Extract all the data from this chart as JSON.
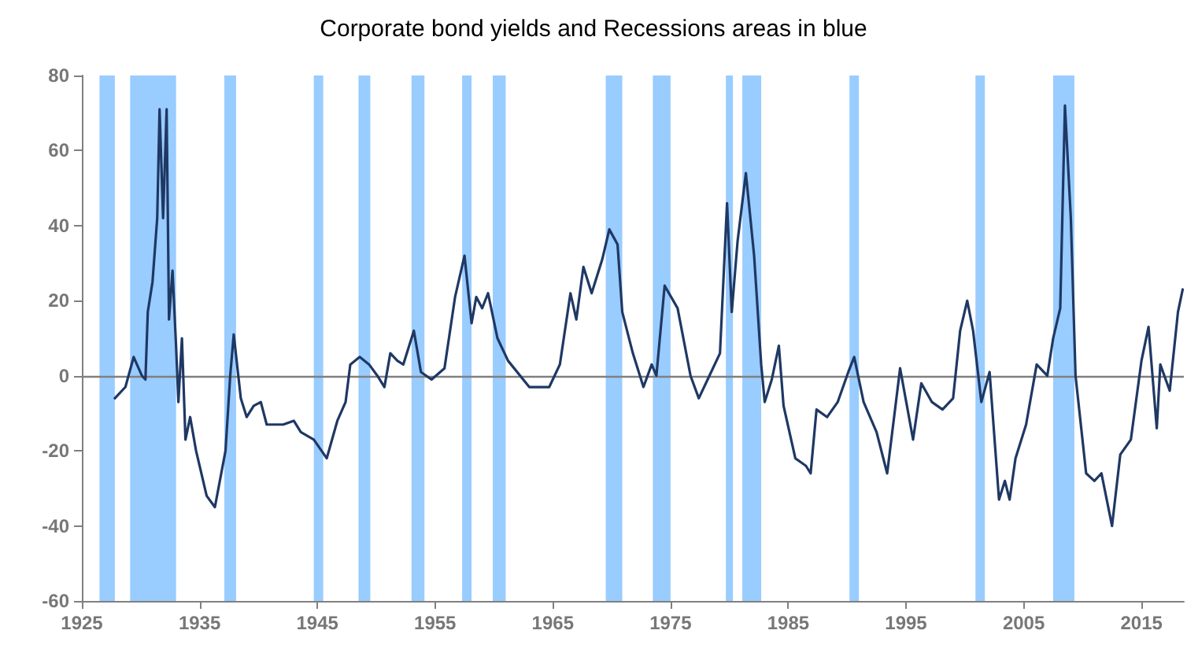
{
  "chart_data": {
    "type": "line",
    "title": "Corporate bond yields and Recessions areas in blue",
    "series": [
      {
        "color": "#1f3864",
        "x": [
          1927.8,
          1928.7,
          1929.4,
          1930.1,
          1930.4,
          1930.6,
          1931.0,
          1931.4,
          1931.6,
          1931.9,
          1932.2,
          1932.4,
          1932.7,
          1933.0,
          1933.2,
          1933.5,
          1933.8,
          1934.2,
          1934.7,
          1935.6,
          1936.3,
          1937.2,
          1937.6,
          1937.9,
          1938.5,
          1939.0,
          1939.6,
          1940.2,
          1940.7,
          1942.1,
          1943.0,
          1943.6,
          1944.7,
          1945.8,
          1946.7,
          1947.4,
          1947.8,
          1948.6,
          1949.4,
          1950.1,
          1950.7,
          1951.2,
          1951.8,
          1952.3,
          1953.2,
          1953.8,
          1954.7,
          1955.8,
          1956.7,
          1957.5,
          1958.1,
          1958.5,
          1959.0,
          1959.5,
          1960.3,
          1961.2,
          1963.0,
          1964.7,
          1965.6,
          1966.5,
          1967.0,
          1967.6,
          1968.3,
          1969.2,
          1969.8,
          1970.5,
          1970.9,
          1971.8,
          1972.7,
          1973.4,
          1973.8,
          1974.5,
          1975.6,
          1976.7,
          1977.4,
          1978.3,
          1979.2,
          1979.8,
          1980.2,
          1980.7,
          1981.4,
          1982.1,
          1982.7,
          1983.0,
          1983.6,
          1984.2,
          1984.6,
          1985.6,
          1986.5,
          1986.9,
          1987.4,
          1988.3,
          1989.2,
          1990.1,
          1990.6,
          1991.4,
          1992.5,
          1993.4,
          1994.5,
          1995.6,
          1996.3,
          1997.2,
          1998.1,
          1999.0,
          1999.6,
          2000.2,
          2000.7,
          2001.4,
          2002.1,
          2002.9,
          2003.4,
          2003.8,
          2004.3,
          2005.2,
          2006.1,
          2007.0,
          2007.5,
          2008.1,
          2008.5,
          2009.0,
          2009.4,
          2010.3,
          2011.0,
          2011.6,
          2012.5,
          2013.2,
          2014.1,
          2015.0,
          2015.6,
          2016.3,
          2016.6,
          2017.4,
          2018.1,
          2018.5
        ],
        "values": [
          -6,
          -3,
          5,
          0,
          -1,
          17,
          25,
          42,
          71,
          42,
          71,
          15,
          28,
          8,
          -7,
          10,
          -17,
          -11,
          -20,
          -32,
          -35,
          -20,
          0,
          11,
          -6,
          -11,
          -8,
          -7,
          -13,
          -13,
          -12,
          -15,
          -17,
          -22,
          -12,
          -7,
          3,
          5,
          3,
          0,
          -3,
          6,
          4,
          3,
          12,
          1,
          -1,
          2,
          21,
          32,
          14,
          21,
          18,
          22,
          10,
          4,
          -3,
          -3,
          3,
          22,
          15,
          29,
          22,
          31,
          39,
          35,
          17,
          6,
          -3,
          3,
          0,
          24,
          18,
          0,
          -6,
          0,
          6,
          46,
          17,
          36,
          54,
          32,
          3,
          -7,
          -1,
          8,
          -8,
          -22,
          -24,
          -26,
          -9,
          -11,
          -7,
          1,
          5,
          -7,
          -15,
          -26,
          2,
          -17,
          -2,
          -7,
          -9,
          -6,
          12,
          20,
          12,
          -7,
          1,
          -33,
          -28,
          -33,
          -22,
          -13,
          3,
          0,
          10,
          18,
          72,
          42,
          0,
          -26,
          -28,
          -26,
          -40,
          -21,
          -17,
          4,
          13,
          -14,
          3,
          -4,
          17,
          23
        ]
      }
    ],
    "xlim": [
      1925,
      2018.6
    ],
    "xticks": [
      1925,
      1935,
      1945,
      1955,
      1965,
      1975,
      1985,
      1995,
      2005,
      2015
    ],
    "ylim": [
      -60,
      80
    ],
    "yticks": [
      -60,
      -40,
      -20,
      0,
      20,
      40,
      60,
      80
    ],
    "grid": false,
    "marker": "none",
    "line_style": "solid",
    "ref_lines": [
      {
        "axis": "y",
        "value": 0,
        "color": "#808080"
      }
    ],
    "bands": [
      {
        "axis": "x",
        "from": 1926.5,
        "to": 1927.8,
        "color": "#99ccff"
      },
      {
        "axis": "x",
        "from": 1929.1,
        "to": 1933.0,
        "color": "#99ccff"
      },
      {
        "axis": "x",
        "from": 1937.1,
        "to": 1938.1,
        "color": "#99ccff"
      },
      {
        "axis": "x",
        "from": 1944.7,
        "to": 1945.5,
        "color": "#99ccff"
      },
      {
        "axis": "x",
        "from": 1948.5,
        "to": 1949.5,
        "color": "#99ccff"
      },
      {
        "axis": "x",
        "from": 1953.0,
        "to": 1954.1,
        "color": "#99ccff"
      },
      {
        "axis": "x",
        "from": 1957.3,
        "to": 1958.1,
        "color": "#99ccff"
      },
      {
        "axis": "x",
        "from": 1959.9,
        "to": 1961.0,
        "color": "#99ccff"
      },
      {
        "axis": "x",
        "from": 1969.5,
        "to": 1970.9,
        "color": "#99ccff"
      },
      {
        "axis": "x",
        "from": 1973.5,
        "to": 1975.0,
        "color": "#99ccff"
      },
      {
        "axis": "x",
        "from": 1979.7,
        "to": 1980.3,
        "color": "#99ccff"
      },
      {
        "axis": "x",
        "from": 1981.1,
        "to": 1982.7,
        "color": "#99ccff"
      },
      {
        "axis": "x",
        "from": 1990.2,
        "to": 1991.0,
        "color": "#99ccff"
      },
      {
        "axis": "x",
        "from": 2000.9,
        "to": 2001.7,
        "color": "#99ccff"
      },
      {
        "axis": "x",
        "from": 2007.5,
        "to": 2009.3,
        "color": "#99ccff"
      }
    ]
  }
}
